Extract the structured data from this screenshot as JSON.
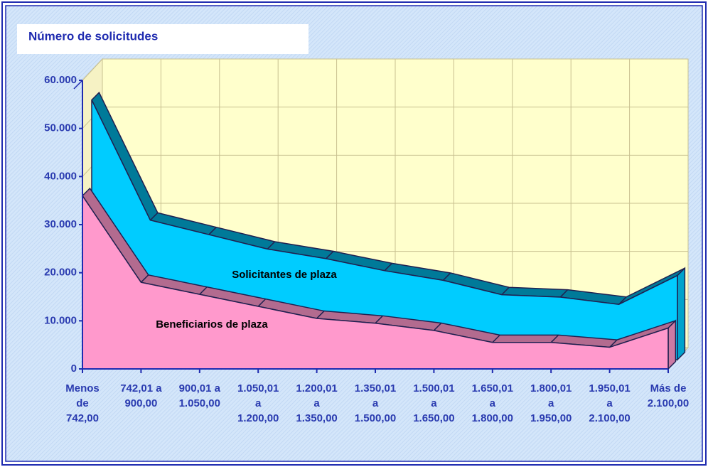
{
  "chart_data": {
    "type": "area3d",
    "title": "Número de solicitudes",
    "categories": [
      [
        "Menos",
        "de",
        "742,00"
      ],
      [
        "742,01 a",
        "900,00"
      ],
      [
        "900,01 a",
        "1.050,00"
      ],
      [
        "1.050,01",
        "a",
        "1.200,00"
      ],
      [
        "1.200,01",
        "a",
        "1.350,00"
      ],
      [
        "1.350,01",
        "a",
        "1.500,00"
      ],
      [
        "1.500,01",
        "a",
        "1.650,00"
      ],
      [
        "1.650,01",
        "a",
        "1.800,00"
      ],
      [
        "1.800,01",
        "a",
        "1.950,00"
      ],
      [
        "1.950,01",
        "a",
        "2.100,00"
      ],
      [
        "Más de",
        "2.100,00"
      ]
    ],
    "series": [
      {
        "name": "Solicitantes de plaza",
        "color": "#00ccff",
        "values": [
          54000,
          29000,
          26000,
          23000,
          21000,
          18500,
          16500,
          13500,
          13000,
          11500,
          17500
        ]
      },
      {
        "name": "Beneficiarios de plaza",
        "color": "#ff99cc",
        "values": [
          36000,
          18000,
          15500,
          13000,
          10500,
          9500,
          8000,
          5500,
          5500,
          4500,
          8500
        ]
      }
    ],
    "ylim": [
      0,
      60000
    ],
    "yticks": [
      0,
      {
        "value": 10000,
        "label": "10.000"
      },
      {
        "value": 20000,
        "label": "20.000"
      },
      {
        "value": 30000,
        "label": "30.000"
      },
      {
        "value": 40000,
        "label": "40.000"
      },
      {
        "value": 50000,
        "label": "50.000"
      },
      {
        "value": 60000,
        "label": "60.000"
      }
    ],
    "grid": true
  }
}
